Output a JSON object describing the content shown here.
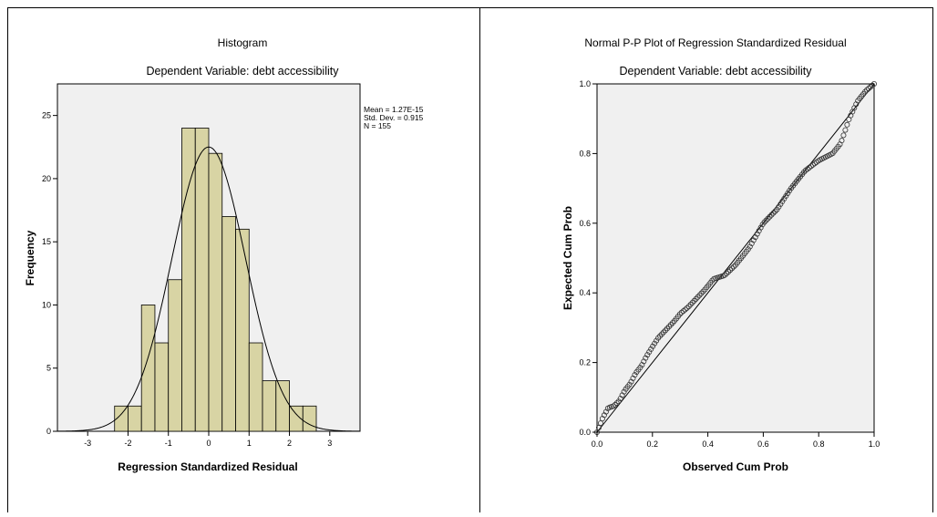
{
  "chart_data": [
    {
      "type": "bar",
      "title": "Histogram",
      "subtitle": "Dependent Variable: debt accessibility",
      "xlabel": "Regression Standardized Residual",
      "ylabel": "Frequency",
      "xlim": [
        -3.75,
        3.75
      ],
      "ylim": [
        0,
        27.5
      ],
      "xticks": [
        -3,
        -2,
        -1,
        0,
        1,
        2,
        3
      ],
      "yticks": [
        0,
        5,
        10,
        15,
        20,
        25
      ],
      "bin_width": 0.333,
      "bins": [
        {
          "start": -2.333,
          "count": 2
        },
        {
          "start": -2.0,
          "count": 2
        },
        {
          "start": -1.667,
          "count": 10
        },
        {
          "start": -1.333,
          "count": 7
        },
        {
          "start": -1.0,
          "count": 12
        },
        {
          "start": -0.667,
          "count": 24
        },
        {
          "start": -0.333,
          "count": 24
        },
        {
          "start": 0.0,
          "count": 22
        },
        {
          "start": 0.333,
          "count": 17
        },
        {
          "start": 0.667,
          "count": 16
        },
        {
          "start": 1.0,
          "count": 7
        },
        {
          "start": 1.333,
          "count": 4
        },
        {
          "start": 1.667,
          "count": 4
        },
        {
          "start": 2.0,
          "count": 2
        },
        {
          "start": 2.333,
          "count": 2
        }
      ],
      "normal_curve": {
        "mean": 0,
        "sd": 0.915,
        "n": 155
      },
      "stats": [
        "Mean = 1.27E-15",
        "Std. Dev. = 0.915",
        "N = 155"
      ],
      "grid": false,
      "colors": {
        "bar_fill": "#d8d4a4",
        "plot_bg": "#f0f0f0",
        "curve": "#000000"
      }
    },
    {
      "type": "scatter",
      "title": "Normal P-P Plot of Regression Standardized Residual",
      "subtitle": "Dependent Variable: debt accessibility",
      "xlabel": "Observed Cum Prob",
      "ylabel": "Expected Cum Prob",
      "xlim": [
        0,
        1
      ],
      "ylim": [
        0,
        1
      ],
      "xticks": [
        "0.0",
        "0.2",
        "0.4",
        "0.6",
        "0.8",
        "1.0"
      ],
      "yticks": [
        "0.0",
        "0.2",
        "0.4",
        "0.6",
        "0.8",
        "1.0"
      ],
      "reference_line": [
        [
          0,
          0
        ],
        [
          1,
          1
        ]
      ],
      "points_anchor_curve": [
        [
          0.0,
          0.0
        ],
        [
          0.02,
          0.04
        ],
        [
          0.04,
          0.07
        ],
        [
          0.06,
          0.075
        ],
        [
          0.08,
          0.09
        ],
        [
          0.1,
          0.12
        ],
        [
          0.12,
          0.14
        ],
        [
          0.14,
          0.17
        ],
        [
          0.16,
          0.19
        ],
        [
          0.18,
          0.22
        ],
        [
          0.2,
          0.245
        ],
        [
          0.22,
          0.27
        ],
        [
          0.25,
          0.295
        ],
        [
          0.28,
          0.32
        ],
        [
          0.3,
          0.34
        ],
        [
          0.33,
          0.36
        ],
        [
          0.36,
          0.385
        ],
        [
          0.39,
          0.41
        ],
        [
          0.42,
          0.44
        ],
        [
          0.46,
          0.45
        ],
        [
          0.5,
          0.48
        ],
        [
          0.55,
          0.53
        ],
        [
          0.6,
          0.6
        ],
        [
          0.65,
          0.64
        ],
        [
          0.7,
          0.7
        ],
        [
          0.75,
          0.75
        ],
        [
          0.8,
          0.78
        ],
        [
          0.85,
          0.8
        ],
        [
          0.88,
          0.83
        ],
        [
          0.91,
          0.9
        ],
        [
          0.94,
          0.95
        ],
        [
          0.97,
          0.98
        ],
        [
          1.0,
          1.0
        ]
      ],
      "n_points": 155,
      "grid": false,
      "colors": {
        "plot_bg": "#f0f0f0",
        "point_stroke": "#333333",
        "line": "#000000"
      }
    }
  ]
}
